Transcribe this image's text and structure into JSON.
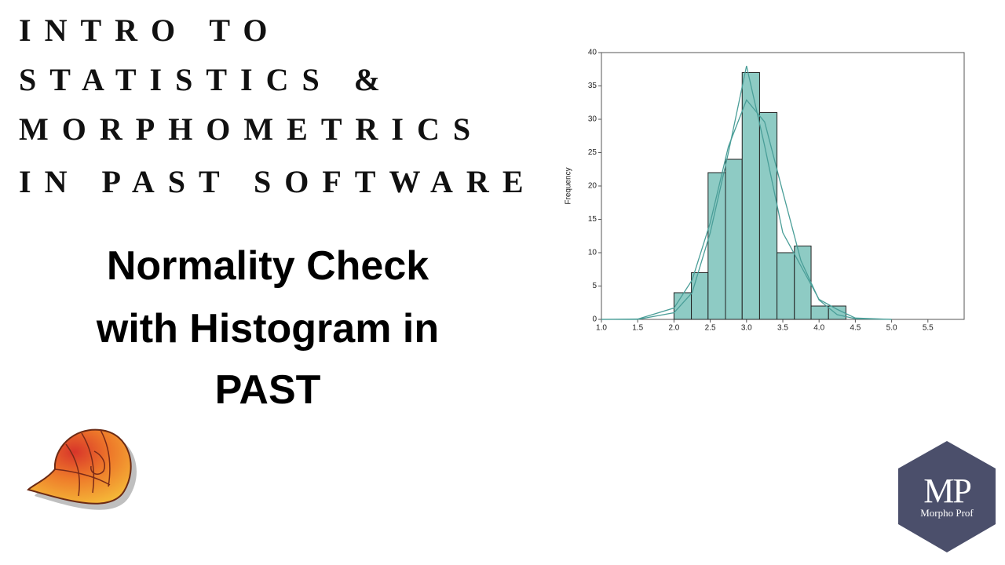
{
  "heading": {
    "lines": [
      "INTRO TO",
      "STATISTICS &",
      "MORPHOMETRICS",
      "IN PAST SOFTWARE"
    ]
  },
  "title": {
    "lines": [
      "Normality Check",
      "with Histogram in",
      "PAST"
    ]
  },
  "logo": {
    "initials": "MP",
    "name": "Morpho Prof"
  },
  "chart_data": {
    "type": "histogram",
    "y_label": "Frequency",
    "bins": [
      2.0,
      2.24,
      2.47,
      2.71,
      2.94,
      3.18,
      3.42,
      3.66,
      3.89,
      4.13,
      4.37
    ],
    "counts": [
      4,
      7,
      22,
      24,
      37,
      31,
      10,
      11,
      2,
      2
    ],
    "color": "#8ecbc4",
    "xlim": [
      1,
      6
    ],
    "xticks": [
      {
        "value": 1,
        "label": "1.0"
      },
      1.5,
      {
        "value": 2,
        "label": "2.0"
      },
      2.5,
      {
        "value": 3,
        "label": "3.0"
      },
      3.5,
      {
        "value": 4,
        "label": "4.0"
      },
      4.5,
      {
        "value": 5,
        "label": "5.0"
      },
      5.5
    ],
    "ylim": [
      0,
      40
    ],
    "yticks": [
      0,
      5,
      10,
      15,
      20,
      25,
      30,
      35,
      40
    ],
    "curves": [
      {
        "color": "#4a9e98",
        "x": [
          1.0,
          1.5,
          2.0,
          2.25,
          2.5,
          2.75,
          3.0,
          3.25,
          3.5,
          3.75,
          4.0,
          4.25,
          4.5,
          5.0
        ],
        "values": [
          0,
          0.05,
          1.7,
          5.9,
          14.5,
          25.9,
          32.9,
          29.6,
          19.1,
          8.8,
          2.9,
          0.7,
          0.1,
          0
        ]
      },
      {
        "color": "#4a9e98",
        "x": [
          1.0,
          1.5,
          2.0,
          2.25,
          2.5,
          2.75,
          3.0,
          3.25,
          3.5,
          3.75,
          4.0,
          4.25,
          4.5,
          5.0
        ],
        "values": [
          0,
          0,
          1,
          4,
          13,
          25,
          38,
          26,
          13,
          8,
          3,
          1.5,
          0.2,
          0
        ]
      }
    ]
  }
}
